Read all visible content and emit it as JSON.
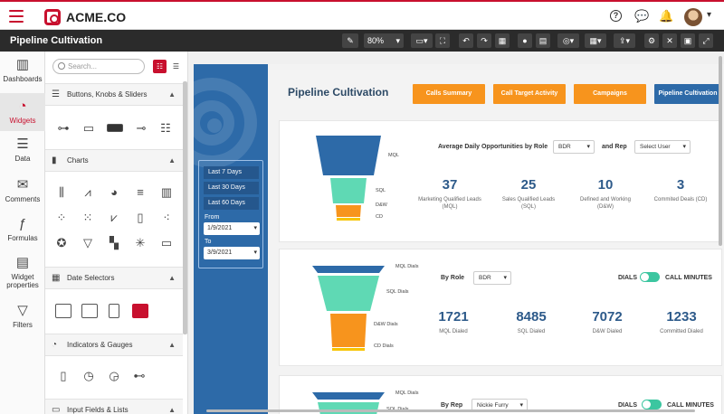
{
  "app": {
    "brand": "ACME.CO",
    "page_title": "Pipeline Cultivation"
  },
  "toolbar": {
    "zoom": "80%"
  },
  "rail": [
    {
      "label": "Dashboards",
      "icon": "bar-chart-icon",
      "glyph": "▥"
    },
    {
      "label": "Widgets",
      "icon": "gauge-icon",
      "glyph": "◔"
    },
    {
      "label": "Data",
      "icon": "database-icon",
      "glyph": "☰"
    },
    {
      "label": "Comments",
      "icon": "comments-icon",
      "glyph": "✉"
    },
    {
      "label": "Formulas",
      "icon": "formula-icon",
      "glyph": "ƒ"
    },
    {
      "label": "Widget properties",
      "icon": "properties-icon",
      "glyph": "▤"
    },
    {
      "label": "Filters",
      "icon": "filter-icon",
      "glyph": "▽"
    }
  ],
  "panel": {
    "search_placeholder": "Search...",
    "sections": [
      {
        "label": "Buttons, Knobs & Sliders"
      },
      {
        "label": "Charts"
      },
      {
        "label": "Date Selectors"
      },
      {
        "label": "Indicators & Gauges"
      },
      {
        "label": "Input Fields & Lists"
      }
    ]
  },
  "dashboard": {
    "title": "Pipeline Cultivation",
    "tabs": [
      "Calls Summary",
      "Call Target Activity",
      "Campaigns",
      "Pipeline Cultivation"
    ],
    "date_options": [
      "Last 7 Days",
      "Last 30 Days",
      "Last 60 Days"
    ],
    "from_label": "From",
    "from_value": "1/9/2021",
    "to_label": "To",
    "to_value": "3/9/2021",
    "card1": {
      "control_label": "Average Daily Opportunities by Role",
      "role_value": "BDR",
      "and_rep": "and Rep",
      "rep_value": "Select User",
      "funnel_labels": [
        "MQL",
        "SQL",
        "D&W",
        "CD"
      ],
      "kpis": [
        {
          "value": "37",
          "label": "Marketing Qualified Leads (MQL)"
        },
        {
          "value": "25",
          "label": "Sales Qualified Leads (SQL)"
        },
        {
          "value": "10",
          "label": "Defined and Working (D&W)"
        },
        {
          "value": "3",
          "label": "Commited Deals (CD)"
        }
      ]
    },
    "card2": {
      "control_label": "By Role",
      "role_value": "BDR",
      "toggle_left": "DIALS",
      "toggle_right": "CALL MINUTES",
      "funnel_labels": [
        "MQL Dials",
        "SQL Dials",
        "D&W Dials",
        "CD Dials"
      ],
      "kpis": [
        {
          "value": "1721",
          "label": "MQL Dialed"
        },
        {
          "value": "8485",
          "label": "SQL Dialed"
        },
        {
          "value": "7072",
          "label": "D&W Dialed"
        },
        {
          "value": "1233",
          "label": "Committed Dialed"
        }
      ]
    },
    "card3": {
      "control_label": "By Rep",
      "rep_value": "Nickie Furry",
      "toggle_left": "DIALS",
      "toggle_right": "CALL MINUTES",
      "funnel_labels": [
        "MQL Dials",
        "SQL Dials"
      ]
    }
  },
  "colors": {
    "brand": "#c8102e",
    "blue": "#2d6aa8",
    "orange": "#f7941d",
    "teal": "#5fd9b4",
    "dark": "#2b2b2b"
  }
}
